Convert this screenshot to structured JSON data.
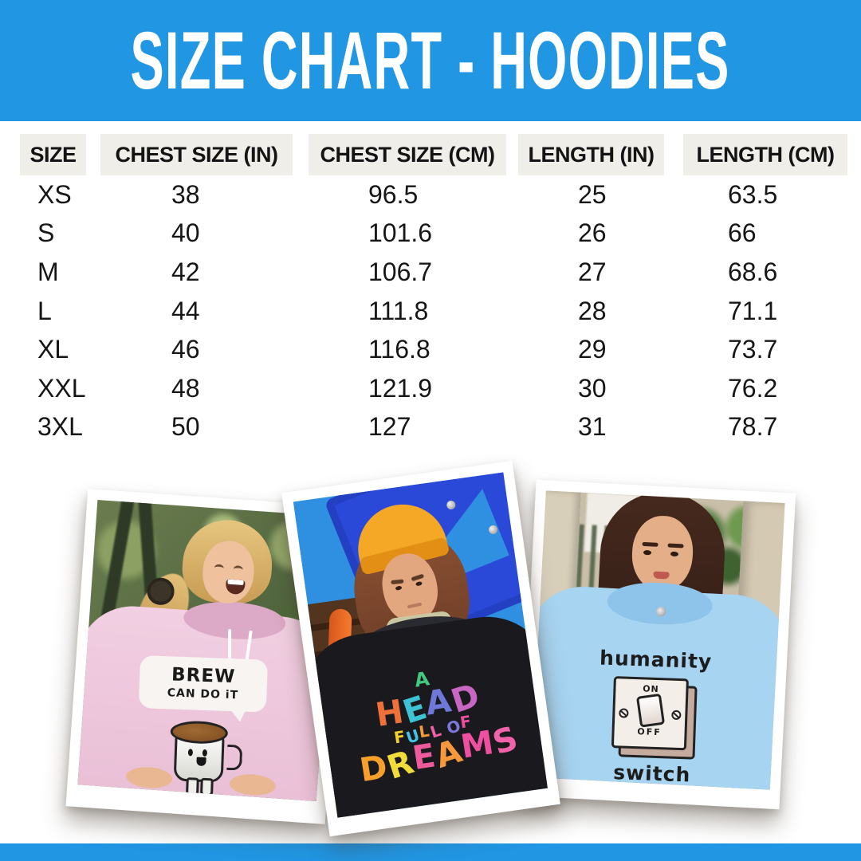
{
  "colors": {
    "banner_blue": "#2196E3",
    "table_header_bg": "#F0EEE8",
    "table_text": "#161616",
    "pink_hoodie": "#EFC9DC",
    "black_hoodie": "#1A1A1E",
    "blue_hoodie": "#A7D4F1",
    "beanie_orange": "#F5A826"
  },
  "header": {
    "title": "SIZE CHART - HOODIES"
  },
  "chart_data": {
    "type": "table",
    "title": "SIZE CHART - HOODIES",
    "columns": [
      "SIZE",
      "CHEST SIZE (IN)",
      "CHEST SIZE (CM)",
      "LENGTH (IN)",
      "LENGTH (CM)"
    ],
    "rows": [
      [
        "XS",
        "38",
        "96.5",
        "25",
        "63.5"
      ],
      [
        "S",
        "40",
        "101.6",
        "26",
        "66"
      ],
      [
        "M",
        "42",
        "106.7",
        "27",
        "68.6"
      ],
      [
        "L",
        "44",
        "111.8",
        "28",
        "71.1"
      ],
      [
        "XL",
        "46",
        "116.8",
        "29",
        "73.7"
      ],
      [
        "XXL",
        "48",
        "121.9",
        "30",
        "76.2"
      ],
      [
        "3XL",
        "50",
        "127",
        "31",
        "78.7"
      ]
    ]
  },
  "photos": {
    "pink_hoodie": {
      "bubble_line1": "BREW",
      "bubble_line2": "CAN DO iT"
    },
    "black_hoodie": {
      "lines": [
        {
          "cls": "rb-a",
          "letters": [
            {
              "ch": "A",
              "c": "#44C87E"
            }
          ]
        },
        {
          "cls": "rb-head",
          "letters": [
            {
              "ch": "H",
              "c": "#F0703A"
            },
            {
              "ch": "E",
              "c": "#3EC3D4"
            },
            {
              "ch": "A",
              "c": "#6E78D8"
            },
            {
              "ch": "D",
              "c": "#C867C3"
            }
          ]
        },
        {
          "cls": "rb-full",
          "letters": [
            {
              "ch": "F",
              "c": "#F6D02E"
            },
            {
              "ch": "U",
              "c": "#44C4E5"
            },
            {
              "ch": "L",
              "c": "#F59B35"
            },
            {
              "ch": "L",
              "c": "#EF62A8"
            },
            {
              "ch": " "
            },
            {
              "ch": "O",
              "c": "#7B78DC"
            },
            {
              "ch": "F",
              "c": "#EE4F9D"
            }
          ]
        },
        {
          "cls": "rb-dreams",
          "letters": [
            {
              "ch": "D",
              "c": "#F6A02B"
            },
            {
              "ch": "R",
              "c": "#F0DD3C"
            },
            {
              "ch": "E",
              "c": "#EF5A9C"
            },
            {
              "ch": "A",
              "c": "#F6983B"
            },
            {
              "ch": "M",
              "c": "#EE4F9F"
            },
            {
              "ch": "S",
              "c": "#F062A9"
            }
          ]
        }
      ]
    },
    "blue_hoodie": {
      "word_top": "humanity",
      "switch_on": "ON",
      "switch_off": "OFF",
      "word_bottom": "switch"
    }
  }
}
